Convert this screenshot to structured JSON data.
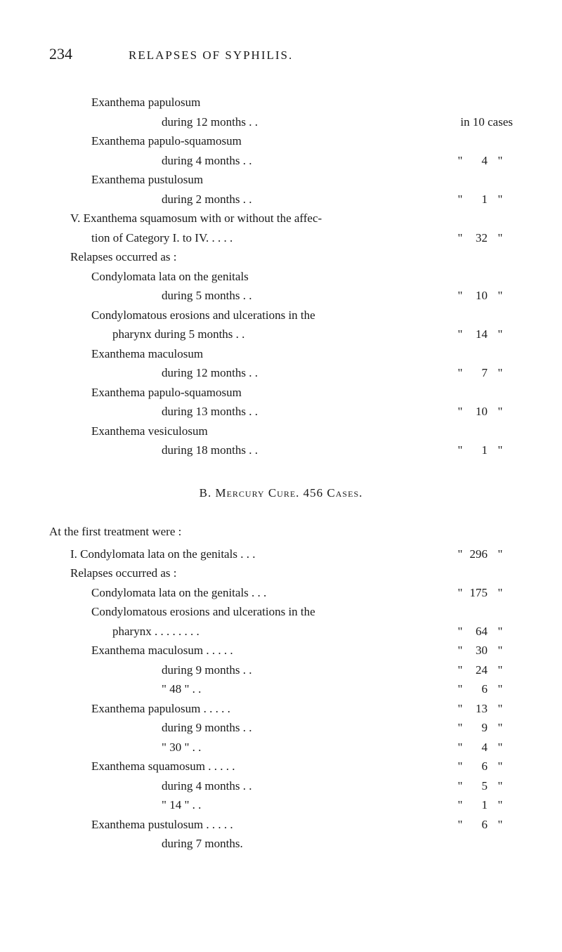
{
  "header": {
    "page_number": "234",
    "title": "RELAPSES OF SYPHILIS."
  },
  "lines": [
    {
      "indent": 2,
      "label": "Exanthema papulosum",
      "value": ""
    },
    {
      "indent": 4,
      "label": "during 12 months .   .",
      "value": "in 10 cases"
    },
    {
      "indent": 2,
      "label": "Exanthema papulo-squamosum",
      "value": ""
    },
    {
      "indent": 4,
      "label": "during 4 months .   .",
      "pre": "\"",
      "num": "4",
      "post": "\""
    },
    {
      "indent": 2,
      "label": "Exanthema pustulosum",
      "value": ""
    },
    {
      "indent": 4,
      "label": "during 2 months .   .",
      "pre": "\"",
      "num": "1",
      "post": "\""
    },
    {
      "indent": 1,
      "label": "V. Exanthema squamosum with or without the affec-",
      "value": ""
    },
    {
      "indent": 2,
      "label": "tion of Category I. to IV.       .   .   .   .",
      "pre": "\"",
      "num": "32",
      "post": "\""
    },
    {
      "indent": 1,
      "label": "Relapses occurred as :",
      "value": ""
    },
    {
      "indent": 2,
      "label": "Condylomata lata on the genitals",
      "value": ""
    },
    {
      "indent": 4,
      "label": "during 5 months .   .",
      "pre": "\"",
      "num": "10",
      "post": "\""
    },
    {
      "indent": 2,
      "label": "Condylomatous erosions and ulcerations in the",
      "value": ""
    },
    {
      "indent": 3,
      "label": "pharynx               during 5 months .   .",
      "pre": "\"",
      "num": "14",
      "post": "\""
    },
    {
      "indent": 2,
      "label": "Exanthema maculosum",
      "value": ""
    },
    {
      "indent": 4,
      "label": "during 12 months .   .",
      "pre": "\"",
      "num": "7",
      "post": "\""
    },
    {
      "indent": 2,
      "label": "Exanthema papulo-squamosum",
      "value": ""
    },
    {
      "indent": 4,
      "label": "during 13 months .   .",
      "pre": "\"",
      "num": "10",
      "post": "\""
    },
    {
      "indent": 2,
      "label": "Exanthema vesiculosum",
      "value": ""
    },
    {
      "indent": 4,
      "label": "during 18 months .   .",
      "pre": "\"",
      "num": "1",
      "post": "\""
    }
  ],
  "section_b": "B.  Mercury Cure.   456 Cases.",
  "lines2_intro": "At the first treatment were :",
  "lines2": [
    {
      "indent": 1,
      "label": "I. Condylomata lata on the genitals      .   .   .",
      "pre": "\"",
      "num": "296",
      "post": "\""
    },
    {
      "indent": 1,
      "label": "Relapses occurred as :",
      "value": ""
    },
    {
      "indent": 2,
      "label": "Condylomata lata on the genitals     .   .   .",
      "pre": "\"",
      "num": "175",
      "post": "\""
    },
    {
      "indent": 2,
      "label": "Condylomatous erosions and ulcerations in the",
      "value": ""
    },
    {
      "indent": 3,
      "label": "pharynx .   .   .   .   .   .   .   .",
      "pre": "\"",
      "num": "64",
      "post": "\""
    },
    {
      "indent": 2,
      "label": "Exanthema maculosum     .   .   .   .   .",
      "pre": "\"",
      "num": "30",
      "post": "\""
    },
    {
      "indent": 4,
      "label": "during 9 months .   .",
      "pre": "\"",
      "num": "24",
      "post": "\""
    },
    {
      "indent": 4,
      "label": "\"   48    \"    .   .",
      "pre": "\"",
      "num": "6",
      "post": "\""
    },
    {
      "indent": 2,
      "label": "Exanthema papulosum     .   .   .   .   .",
      "pre": "\"",
      "num": "13",
      "post": "\""
    },
    {
      "indent": 4,
      "label": "during 9 months .   .",
      "pre": "\"",
      "num": "9",
      "post": "\""
    },
    {
      "indent": 4,
      "label": "\"   30    \"    .   .",
      "pre": "\"",
      "num": "4",
      "post": "\""
    },
    {
      "indent": 2,
      "label": "Exanthema squamosum     .   .   .   .   .",
      "pre": "\"",
      "num": "6",
      "post": "\""
    },
    {
      "indent": 4,
      "label": "during 4 months .   .",
      "pre": "\"",
      "num": "5",
      "post": "\""
    },
    {
      "indent": 4,
      "label": "\"   14    \"    .   .",
      "pre": "\"",
      "num": "1",
      "post": "\""
    },
    {
      "indent": 2,
      "label": "Exanthema pustulosum     .   .   .   .   .",
      "pre": "\"",
      "num": "6",
      "post": "\""
    },
    {
      "indent": 4,
      "label": "during 7 months.",
      "value": ""
    }
  ],
  "style": {
    "text_color": "#1a1a1a",
    "background_color": "#ffffff",
    "body_fontsize": 17,
    "page_num_fontsize": 22
  }
}
